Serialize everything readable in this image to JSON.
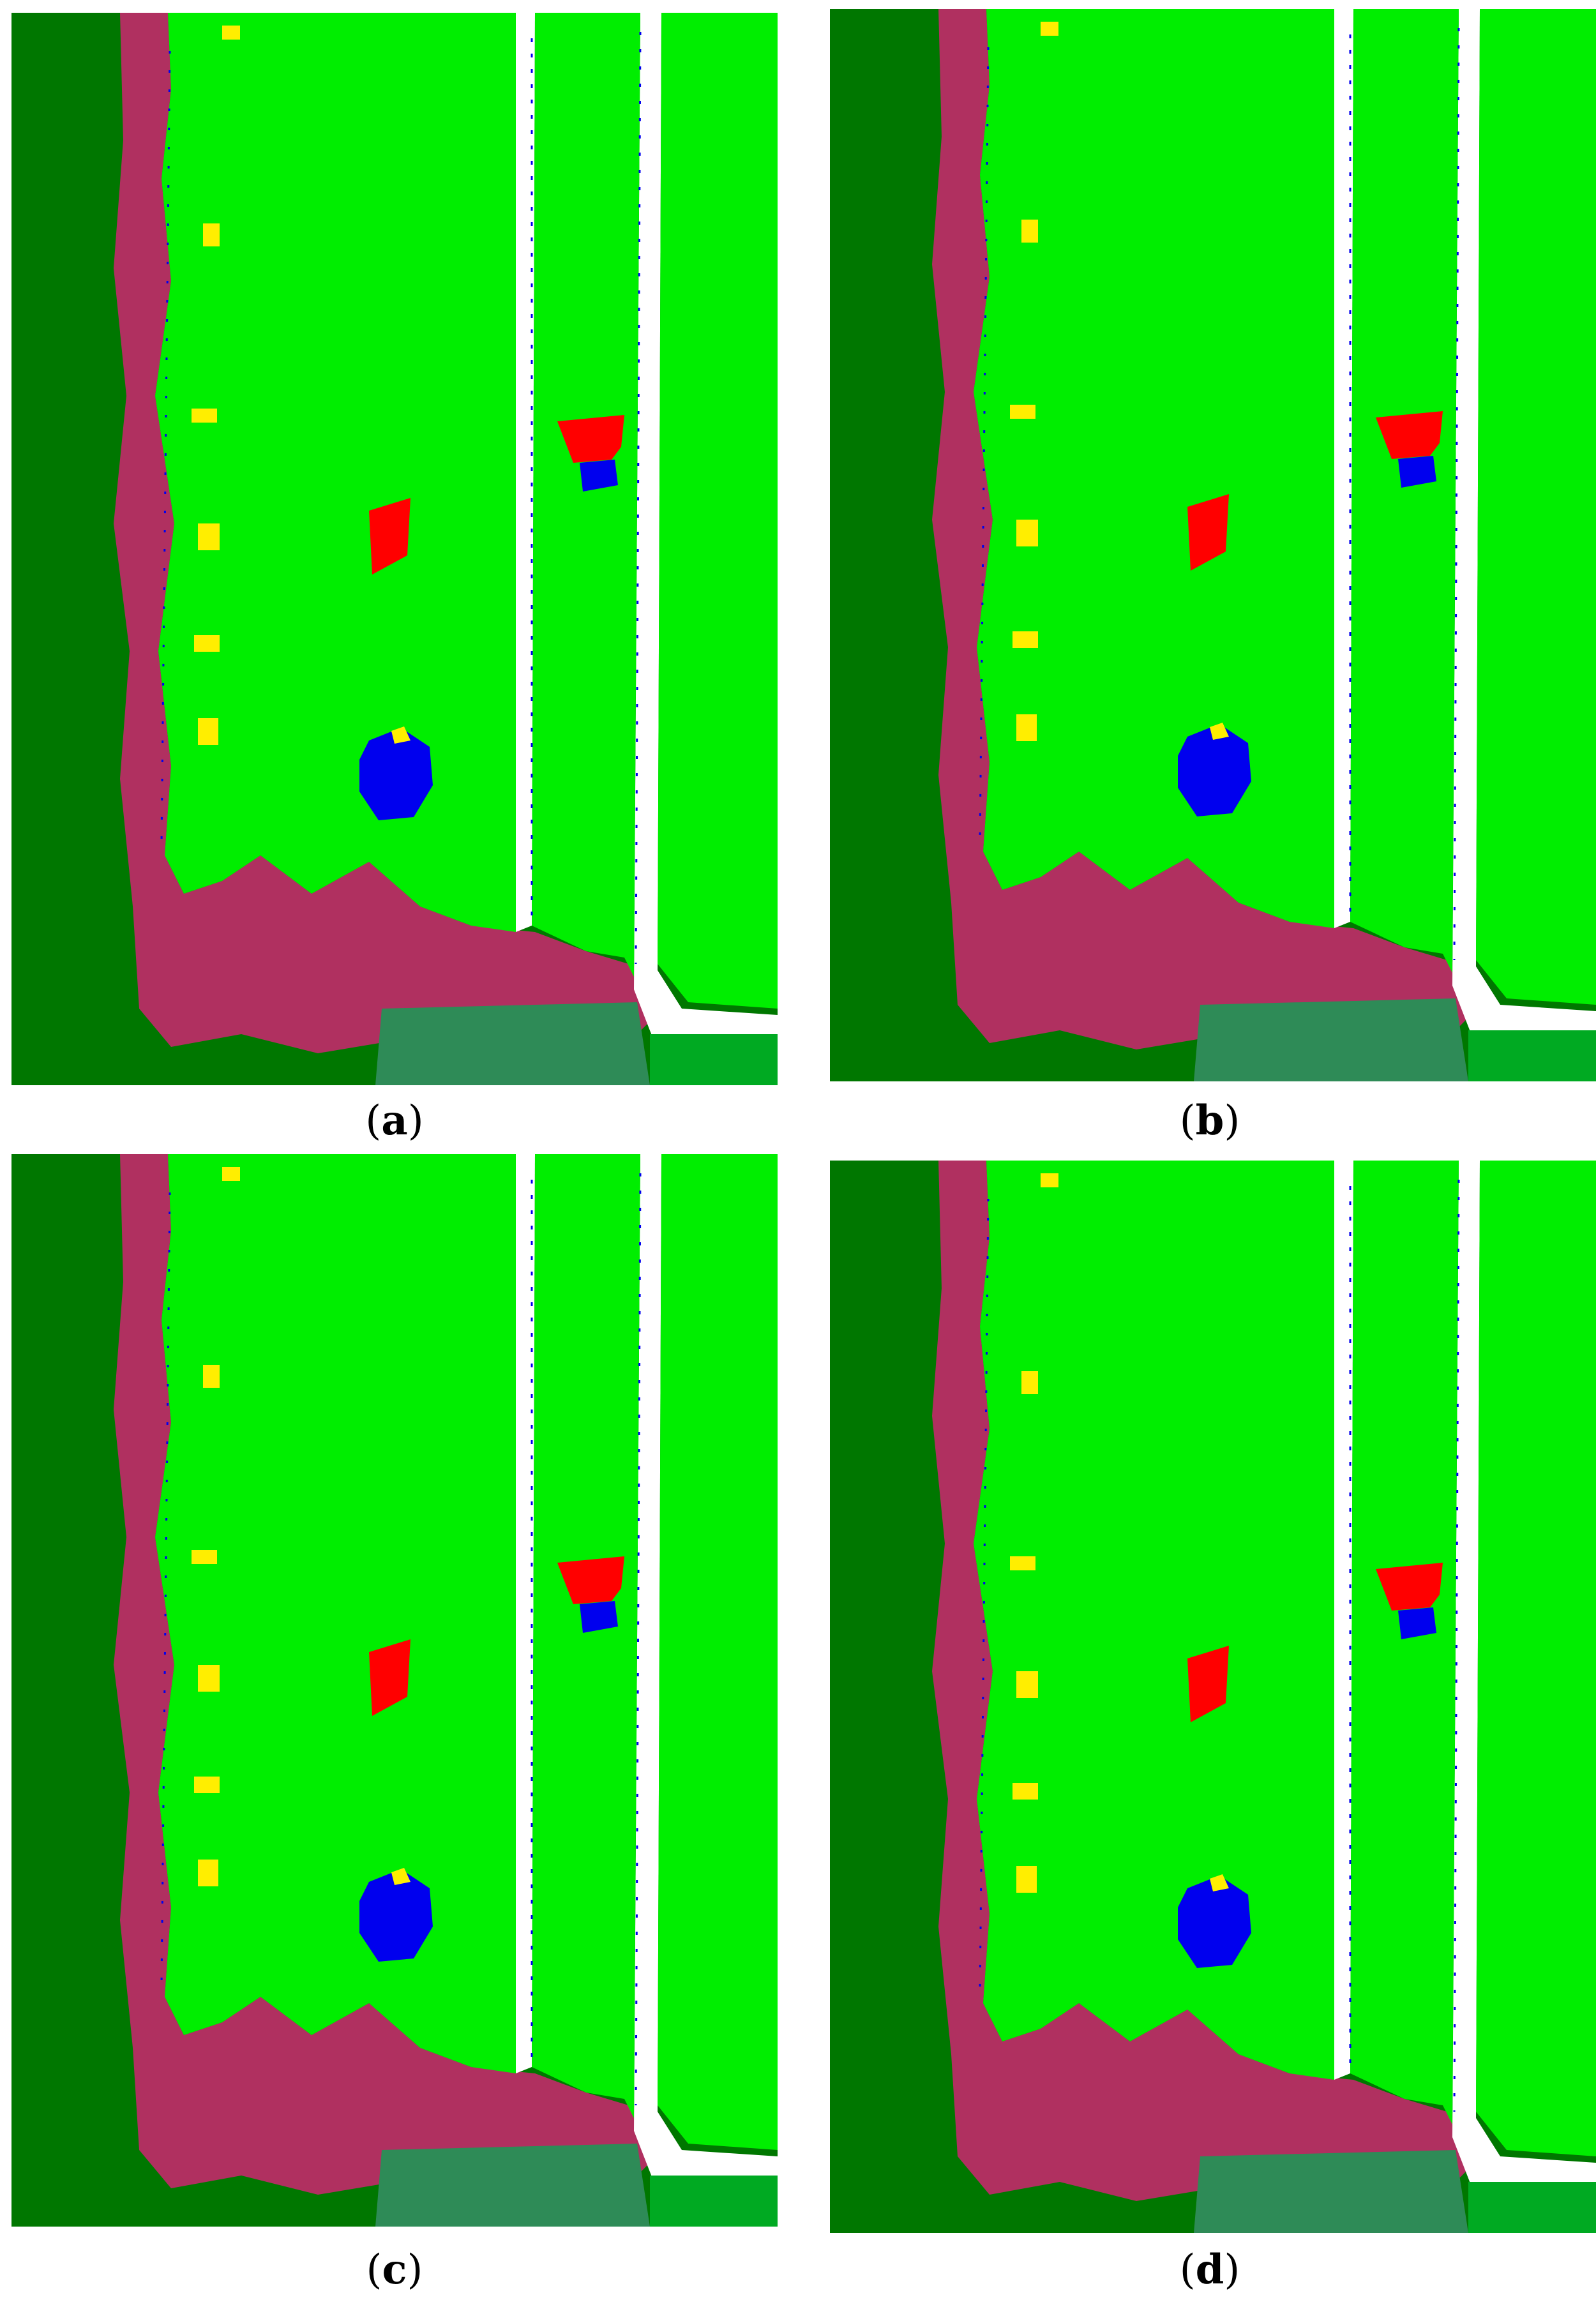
{
  "figure": {
    "panels": [
      {
        "id": "a",
        "caption_open": "(",
        "caption_letter": "a",
        "caption_close": ")"
      },
      {
        "id": "b",
        "caption_open": "(",
        "caption_letter": "b",
        "caption_close": ")"
      },
      {
        "id": "c",
        "caption_open": "(",
        "caption_letter": "c",
        "caption_close": ")"
      },
      {
        "id": "d",
        "caption_open": "(",
        "caption_letter": "d",
        "caption_close": ")"
      }
    ]
  },
  "class_colors": {
    "trees": "#007700",
    "meadow": "#00ee00",
    "meadow_alt": "#11dd33",
    "brush": "#b03060",
    "bare_ground": "#ffffff",
    "shadow_water": "#0000ee",
    "roof_red": "#ff0000",
    "yellow": "#ffee00",
    "wetland": "#2e8b57"
  }
}
